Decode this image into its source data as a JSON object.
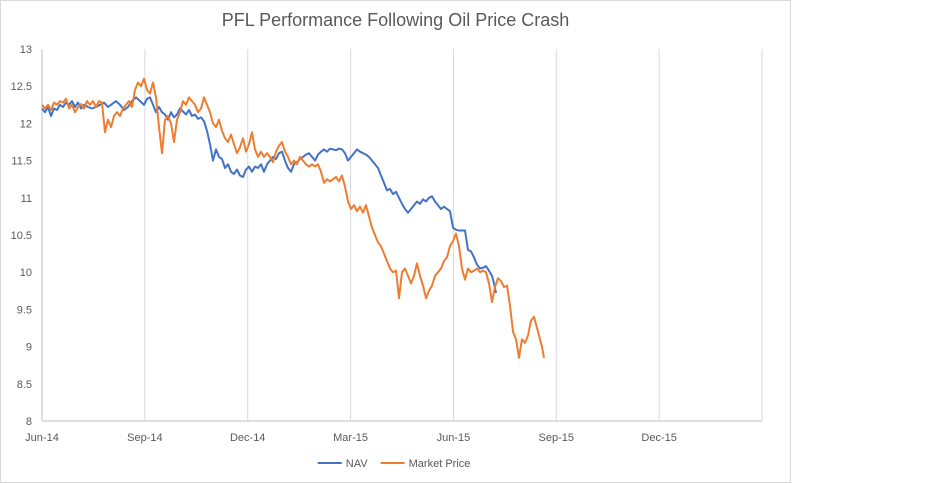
{
  "chart_data": {
    "type": "line",
    "title": "PFL Performance Following Oil Price Crash",
    "xlabel": "",
    "ylabel": "",
    "ylim": [
      8,
      13
    ],
    "y_ticks": [
      "8",
      "8.5",
      "9",
      "9.5",
      "10",
      "10.5",
      "11",
      "11.5",
      "12",
      "12.5",
      "13"
    ],
    "x_ticks": [
      "Jun-14",
      "Sep-14",
      "Dec-14",
      "Mar-15",
      "Jun-15",
      "Sep-15",
      "Dec-15"
    ],
    "grid": "vertical",
    "legend": "bottom",
    "series": [
      {
        "name": "NAV",
        "color": "#4472c4",
        "points": [
          [
            0,
            12.2
          ],
          [
            3,
            12.15
          ],
          [
            6,
            12.22
          ],
          [
            9,
            12.1
          ],
          [
            12,
            12.2
          ],
          [
            15,
            12.18
          ],
          [
            18,
            12.25
          ],
          [
            21,
            12.22
          ],
          [
            24,
            12.28
          ],
          [
            27,
            12.25
          ],
          [
            30,
            12.3
          ],
          [
            33,
            12.22
          ],
          [
            36,
            12.28
          ],
          [
            39,
            12.2
          ],
          [
            42,
            12.25
          ],
          [
            46,
            12.22
          ],
          [
            50,
            12.2
          ],
          [
            54,
            12.22
          ],
          [
            58,
            12.25
          ],
          [
            62,
            12.28
          ],
          [
            66,
            12.22
          ],
          [
            70,
            12.26
          ],
          [
            74,
            12.3
          ],
          [
            78,
            12.25
          ],
          [
            82,
            12.18
          ],
          [
            86,
            12.22
          ],
          [
            90,
            12.3
          ],
          [
            94,
            12.35
          ],
          [
            98,
            12.3
          ],
          [
            102,
            12.25
          ],
          [
            105,
            12.33
          ],
          [
            108,
            12.35
          ],
          [
            111,
            12.25
          ],
          [
            114,
            12.15
          ],
          [
            117,
            12.22
          ],
          [
            120,
            12.15
          ],
          [
            123,
            12.12
          ],
          [
            126,
            12.05
          ],
          [
            129,
            12.15
          ],
          [
            132,
            12.08
          ],
          [
            135,
            12.12
          ],
          [
            138,
            12.2
          ],
          [
            141,
            12.16
          ],
          [
            144,
            12.12
          ],
          [
            147,
            12.18
          ],
          [
            150,
            12.1
          ],
          [
            153,
            12.12
          ],
          [
            156,
            12.06
          ],
          [
            159,
            12.08
          ],
          [
            162,
            12.03
          ],
          [
            165,
            11.9
          ],
          [
            168,
            11.72
          ],
          [
            171,
            11.5
          ],
          [
            174,
            11.65
          ],
          [
            177,
            11.55
          ],
          [
            180,
            11.52
          ],
          [
            183,
            11.4
          ],
          [
            186,
            11.45
          ],
          [
            189,
            11.35
          ],
          [
            192,
            11.32
          ],
          [
            195,
            11.38
          ],
          [
            198,
            11.3
          ],
          [
            201,
            11.28
          ],
          [
            204,
            11.38
          ],
          [
            207,
            11.42
          ],
          [
            210,
            11.35
          ],
          [
            213,
            11.42
          ],
          [
            216,
            11.4
          ],
          [
            219,
            11.45
          ],
          [
            222,
            11.35
          ],
          [
            225,
            11.45
          ],
          [
            228,
            11.5
          ],
          [
            231,
            11.55
          ],
          [
            234,
            11.52
          ],
          [
            237,
            11.6
          ],
          [
            240,
            11.62
          ],
          [
            243,
            11.5
          ],
          [
            246,
            11.4
          ],
          [
            249,
            11.35
          ],
          [
            252,
            11.45
          ],
          [
            255,
            11.48
          ],
          [
            258,
            11.52
          ],
          [
            261,
            11.55
          ],
          [
            264,
            11.58
          ],
          [
            267,
            11.6
          ],
          [
            270,
            11.55
          ],
          [
            273,
            11.5
          ],
          [
            276,
            11.58
          ],
          [
            279,
            11.62
          ],
          [
            282,
            11.65
          ],
          [
            285,
            11.62
          ],
          [
            288,
            11.66
          ],
          [
            291,
            11.65
          ],
          [
            294,
            11.64
          ],
          [
            297,
            11.66
          ],
          [
            300,
            11.65
          ],
          [
            303,
            11.6
          ],
          [
            306,
            11.5
          ],
          [
            309,
            11.55
          ],
          [
            312,
            11.6
          ],
          [
            315,
            11.65
          ],
          [
            318,
            11.62
          ],
          [
            321,
            11.6
          ],
          [
            324,
            11.58
          ],
          [
            327,
            11.55
          ],
          [
            330,
            11.5
          ],
          [
            333,
            11.45
          ],
          [
            336,
            11.4
          ],
          [
            339,
            11.3
          ],
          [
            342,
            11.2
          ],
          [
            345,
            11.1
          ],
          [
            348,
            11.12
          ],
          [
            351,
            11.05
          ],
          [
            354,
            11.08
          ],
          [
            357,
            11.0
          ],
          [
            360,
            10.92
          ],
          [
            363,
            10.85
          ],
          [
            366,
            10.8
          ],
          [
            369,
            10.85
          ],
          [
            372,
            10.9
          ],
          [
            375,
            10.95
          ],
          [
            378,
            10.92
          ],
          [
            381,
            10.98
          ],
          [
            384,
            10.95
          ],
          [
            387,
            11.0
          ],
          [
            390,
            11.02
          ],
          [
            393,
            10.95
          ],
          [
            396,
            10.9
          ],
          [
            399,
            10.85
          ],
          [
            402,
            10.88
          ],
          [
            405,
            10.85
          ],
          [
            408,
            10.82
          ],
          [
            411,
            10.6
          ],
          [
            414,
            10.57
          ],
          [
            417,
            10.56
          ],
          [
            420,
            10.56
          ],
          [
            423,
            10.56
          ],
          [
            426,
            10.3
          ],
          [
            429,
            10.28
          ],
          [
            432,
            10.2
          ],
          [
            435,
            10.1
          ],
          [
            438,
            10.05
          ],
          [
            441,
            10.06
          ],
          [
            444,
            10.08
          ],
          [
            447,
            10.02
          ],
          [
            450,
            9.95
          ],
          [
            452,
            9.85
          ],
          [
            454,
            9.72
          ]
        ]
      },
      {
        "name": "Market Price",
        "color": "#ed7d31",
        "points": [
          [
            0,
            12.25
          ],
          [
            3,
            12.2
          ],
          [
            6,
            12.25
          ],
          [
            9,
            12.18
          ],
          [
            12,
            12.28
          ],
          [
            15,
            12.25
          ],
          [
            18,
            12.3
          ],
          [
            21,
            12.28
          ],
          [
            24,
            12.33
          ],
          [
            27,
            12.2
          ],
          [
            30,
            12.25
          ],
          [
            33,
            12.15
          ],
          [
            36,
            12.22
          ],
          [
            39,
            12.26
          ],
          [
            42,
            12.2
          ],
          [
            45,
            12.3
          ],
          [
            48,
            12.25
          ],
          [
            51,
            12.3
          ],
          [
            54,
            12.22
          ],
          [
            57,
            12.3
          ],
          [
            60,
            12.28
          ],
          [
            63,
            11.88
          ],
          [
            66,
            12.05
          ],
          [
            69,
            11.95
          ],
          [
            72,
            12.1
          ],
          [
            75,
            12.15
          ],
          [
            78,
            12.1
          ],
          [
            81,
            12.2
          ],
          [
            84,
            12.25
          ],
          [
            87,
            12.3
          ],
          [
            90,
            12.22
          ],
          [
            93,
            12.45
          ],
          [
            96,
            12.55
          ],
          [
            99,
            12.5
          ],
          [
            102,
            12.6
          ],
          [
            105,
            12.45
          ],
          [
            108,
            12.4
          ],
          [
            111,
            12.55
          ],
          [
            114,
            12.35
          ],
          [
            117,
            11.95
          ],
          [
            120,
            11.6
          ],
          [
            123,
            12.05
          ],
          [
            126,
            12.1
          ],
          [
            129,
            12.0
          ],
          [
            132,
            11.75
          ],
          [
            135,
            12.05
          ],
          [
            138,
            12.15
          ],
          [
            141,
            12.3
          ],
          [
            144,
            12.25
          ],
          [
            147,
            12.35
          ],
          [
            150,
            12.3
          ],
          [
            153,
            12.25
          ],
          [
            156,
            12.15
          ],
          [
            159,
            12.2
          ],
          [
            162,
            12.35
          ],
          [
            165,
            12.25
          ],
          [
            168,
            12.15
          ],
          [
            171,
            12.0
          ],
          [
            174,
            11.95
          ],
          [
            177,
            12.05
          ],
          [
            180,
            11.9
          ],
          [
            183,
            11.8
          ],
          [
            186,
            11.75
          ],
          [
            189,
            11.85
          ],
          [
            192,
            11.72
          ],
          [
            195,
            11.6
          ],
          [
            198,
            11.68
          ],
          [
            201,
            11.8
          ],
          [
            204,
            11.62
          ],
          [
            207,
            11.72
          ],
          [
            210,
            11.88
          ],
          [
            213,
            11.65
          ],
          [
            216,
            11.55
          ],
          [
            219,
            11.62
          ],
          [
            222,
            11.55
          ],
          [
            225,
            11.6
          ],
          [
            228,
            11.55
          ],
          [
            231,
            11.48
          ],
          [
            234,
            11.62
          ],
          [
            237,
            11.7
          ],
          [
            240,
            11.75
          ],
          [
            243,
            11.62
          ],
          [
            246,
            11.55
          ],
          [
            249,
            11.45
          ],
          [
            252,
            11.5
          ],
          [
            255,
            11.45
          ],
          [
            258,
            11.55
          ],
          [
            261,
            11.5
          ],
          [
            264,
            11.45
          ],
          [
            267,
            11.42
          ],
          [
            270,
            11.45
          ],
          [
            273,
            11.42
          ],
          [
            276,
            11.45
          ],
          [
            279,
            11.35
          ],
          [
            282,
            11.2
          ],
          [
            285,
            11.25
          ],
          [
            288,
            11.22
          ],
          [
            291,
            11.25
          ],
          [
            294,
            11.28
          ],
          [
            297,
            11.22
          ],
          [
            300,
            11.3
          ],
          [
            303,
            11.15
          ],
          [
            306,
            10.95
          ],
          [
            309,
            10.85
          ],
          [
            312,
            10.9
          ],
          [
            315,
            10.82
          ],
          [
            318,
            10.88
          ],
          [
            321,
            10.8
          ],
          [
            324,
            10.9
          ],
          [
            327,
            10.75
          ],
          [
            330,
            10.6
          ],
          [
            333,
            10.5
          ],
          [
            336,
            10.4
          ],
          [
            339,
            10.35
          ],
          [
            342,
            10.25
          ],
          [
            345,
            10.15
          ],
          [
            348,
            10.05
          ],
          [
            351,
            10.0
          ],
          [
            354,
            10.02
          ],
          [
            357,
            9.65
          ],
          [
            360,
            10.0
          ],
          [
            363,
            10.05
          ],
          [
            366,
            9.95
          ],
          [
            369,
            9.85
          ],
          [
            372,
            9.95
          ],
          [
            375,
            10.12
          ],
          [
            378,
            9.95
          ],
          [
            381,
            9.82
          ],
          [
            384,
            9.65
          ],
          [
            387,
            9.75
          ],
          [
            390,
            9.82
          ],
          [
            393,
            9.95
          ],
          [
            396,
            10.0
          ],
          [
            399,
            10.05
          ],
          [
            402,
            10.15
          ],
          [
            405,
            10.2
          ],
          [
            408,
            10.35
          ],
          [
            411,
            10.42
          ],
          [
            414,
            10.52
          ],
          [
            417,
            10.35
          ],
          [
            420,
            10.05
          ],
          [
            423,
            9.9
          ],
          [
            426,
            10.05
          ],
          [
            429,
            10.0
          ],
          [
            432,
            10.02
          ],
          [
            435,
            10.05
          ],
          [
            438,
            10.0
          ],
          [
            441,
            10.02
          ],
          [
            444,
            10.0
          ],
          [
            447,
            9.85
          ],
          [
            450,
            9.6
          ],
          [
            453,
            9.8
          ],
          [
            456,
            9.92
          ],
          [
            459,
            9.88
          ],
          [
            462,
            9.8
          ],
          [
            465,
            9.82
          ],
          [
            468,
            9.55
          ],
          [
            471,
            9.2
          ],
          [
            474,
            9.1
          ],
          [
            477,
            8.85
          ],
          [
            480,
            9.1
          ],
          [
            483,
            9.05
          ],
          [
            486,
            9.15
          ],
          [
            489,
            9.35
          ],
          [
            492,
            9.4
          ],
          [
            495,
            9.25
          ],
          [
            498,
            9.1
          ],
          [
            500,
            9.0
          ],
          [
            502,
            8.85
          ]
        ]
      }
    ]
  }
}
